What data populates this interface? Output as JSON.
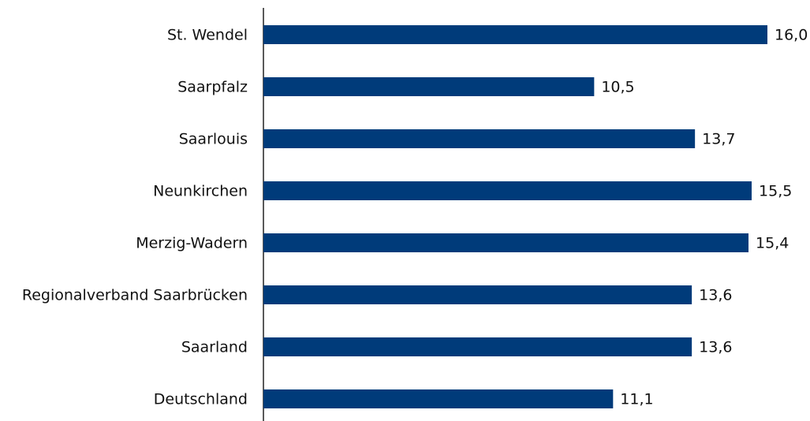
{
  "chart_data": {
    "type": "bar",
    "orientation": "horizontal",
    "categories": [
      "St. Wendel",
      "Saarpfalz",
      "Saarlouis",
      "Neunkirchen",
      "Merzig-Wadern",
      "Regionalverband Saarbrücken",
      "Saarland",
      "Deutschland"
    ],
    "values": [
      16.0,
      10.5,
      13.7,
      15.5,
      15.4,
      13.6,
      13.6,
      11.1
    ],
    "value_labels": [
      "16,0",
      "10,5",
      "13,7",
      "15,5",
      "15,4",
      "13,6",
      "13,6",
      "11,1"
    ],
    "color": "#003b7a"
  }
}
